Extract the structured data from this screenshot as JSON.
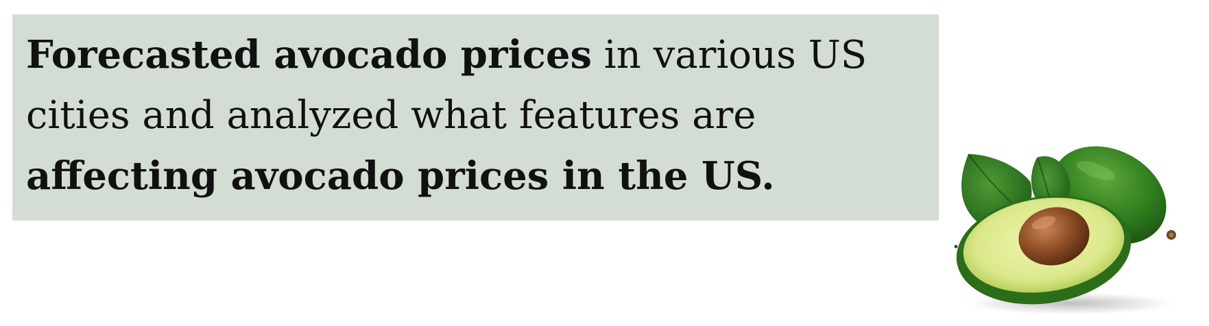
{
  "headline": {
    "segments": [
      {
        "text": "Forecasted avocado prices",
        "bold": true
      },
      {
        "text": " in various US cities and analyzed what features are ",
        "bold": false
      },
      {
        "text": "affecting avocado prices in the US.",
        "bold": true
      }
    ]
  },
  "colors": {
    "panel_background": "#d4ddd3",
    "text": "#111111",
    "avocado_skin": "#2f7d1f",
    "avocado_flesh": "#dbe88a",
    "avocado_pit": "#8a4b25"
  },
  "illustration": {
    "icon": "avocado-icon"
  }
}
